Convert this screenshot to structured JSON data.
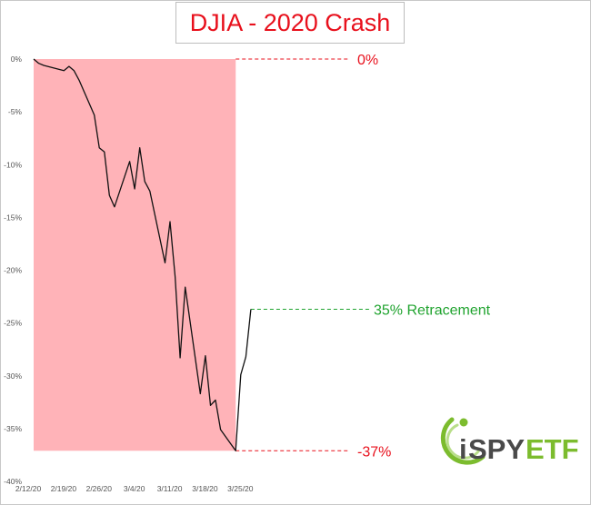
{
  "chart_data": {
    "type": "line",
    "title": "DJIA - 2020 Crash",
    "xlabel": "",
    "ylabel": "",
    "ylim": [
      -40,
      0
    ],
    "y_ticks": [
      "0%",
      "-5%",
      "-10%",
      "-15%",
      "-20%",
      "-25%",
      "-30%",
      "-35%",
      "-40%"
    ],
    "x_ticks": [
      "2/12/20",
      "2/19/20",
      "2/26/20",
      "3/4/20",
      "3/11/20",
      "3/18/20",
      "3/25/20"
    ],
    "series": [
      {
        "x": [
          "2/12/20",
          "2/13/20",
          "2/14/20",
          "2/18/20",
          "2/19/20",
          "2/20/20",
          "2/21/20",
          "2/24/20",
          "2/25/20",
          "2/26/20",
          "2/27/20",
          "2/28/20",
          "3/2/20",
          "3/3/20",
          "3/4/20",
          "3/5/20",
          "3/6/20",
          "3/9/20",
          "3/10/20",
          "3/11/20",
          "3/12/20",
          "3/13/20",
          "3/16/20",
          "3/17/20",
          "3/18/20",
          "3/19/20",
          "3/20/20",
          "3/23/20",
          "3/24/20",
          "3/25/20",
          "3/26/20"
        ],
        "values": [
          0,
          -0.4,
          -0.6,
          -1.1,
          -0.7,
          -1.1,
          -2.0,
          -5.3,
          -8.4,
          -8.8,
          -12.9,
          -14.0,
          -9.7,
          -12.3,
          -8.4,
          -11.6,
          -12.5,
          -19.3,
          -15.4,
          -20.6,
          -28.3,
          -21.6,
          -31.7,
          -28.1,
          -32.8,
          -32.3,
          -35.1,
          -37.1,
          -29.9,
          -28.2,
          -23.7
        ]
      }
    ],
    "shaded_region": {
      "x_start": "2/12/20",
      "x_end": "3/23/20",
      "y_top": 0,
      "y_bottom": -37.1,
      "color": "#ffb3b8"
    },
    "annotations": [
      {
        "text": "0%",
        "value": 0,
        "color": "#e8101c"
      },
      {
        "text": "35% Retracement",
        "value": -23.7,
        "color": "#1fa32e"
      },
      {
        "text": "-37%",
        "value": -37.1,
        "color": "#e8101c"
      }
    ],
    "grid": false
  },
  "logo": {
    "text_i": "i",
    "text_spy": "SPY",
    "text_etf": "ETF",
    "spy_color": "#4a4a4a",
    "etf_color": "#7cbc2e"
  }
}
